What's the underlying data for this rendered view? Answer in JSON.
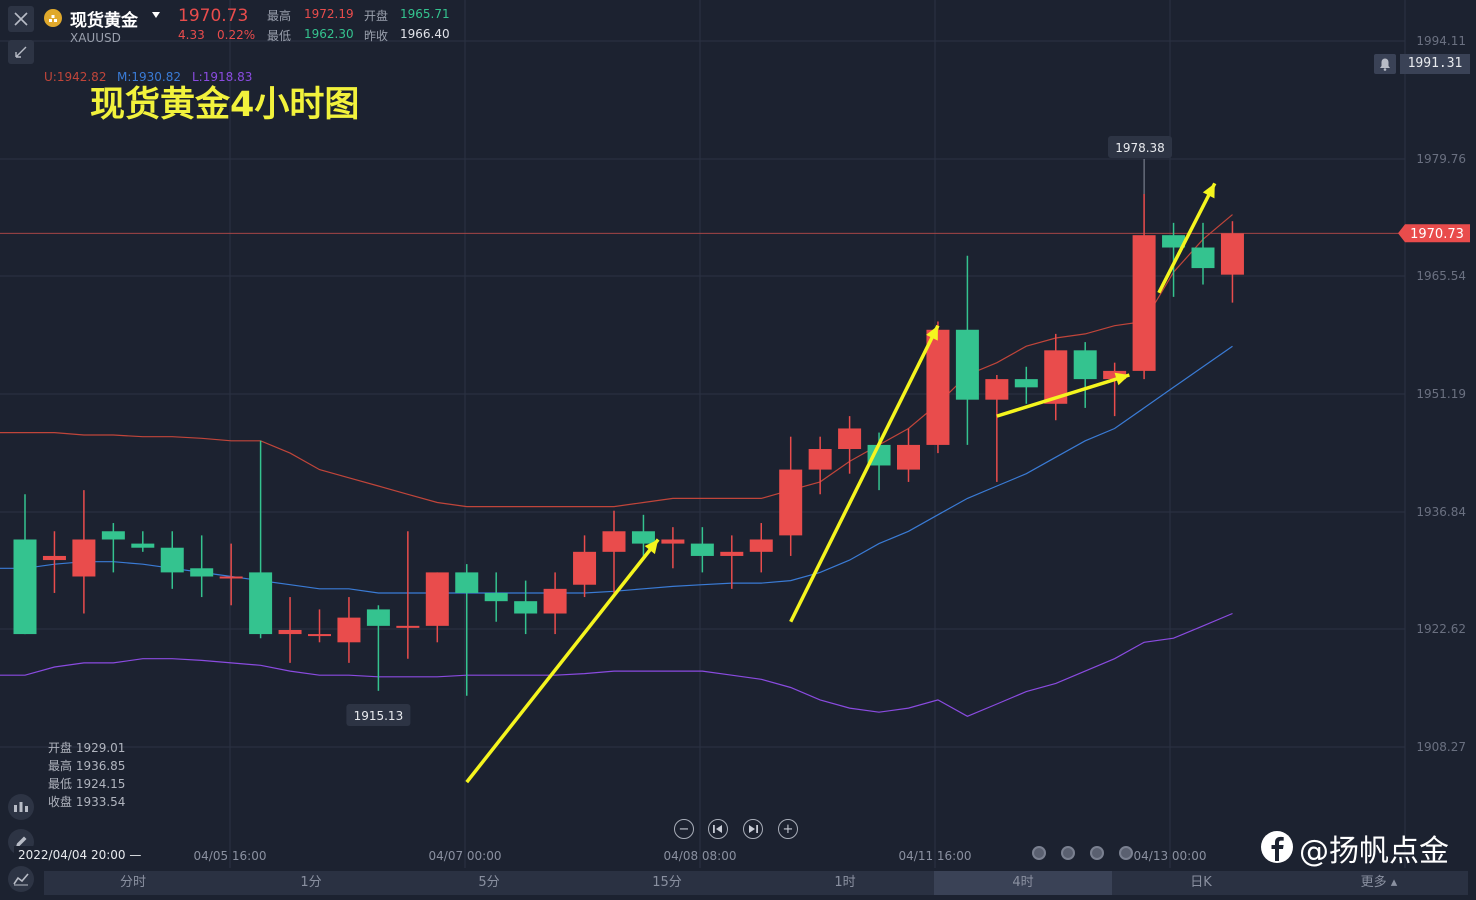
{
  "header": {
    "name": "现货黄金",
    "symbol": "XAUUSD",
    "price": "1970.73",
    "change": "4.33",
    "change_pct": "0.22%",
    "high_label": "最高",
    "high_value": "1972.19",
    "low_label": "最低",
    "low_value": "1962.30",
    "open_label": "开盘",
    "open_value": "1965.71",
    "prev_close_label": "昨收",
    "prev_close_value": "1966.40"
  },
  "boll": {
    "upper": "U:1942.82",
    "middle": "M:1930.82",
    "lower": "L:1918.83"
  },
  "overlay_title": "现货黄金4小时图",
  "alert_price": "1991.31",
  "ohlc_panel": {
    "open": "开盘 1929.01",
    "high": "最高 1936.85",
    "low": "最低 1924.15",
    "close": "收盘 1933.54"
  },
  "crosshair_time": "2022/04/04 20:00",
  "watermark": "@扬帆点金",
  "timeframes": [
    "分时",
    "1分",
    "5分",
    "15分",
    "1时",
    "4时",
    "日K",
    "更多"
  ],
  "active_timeframe": "4时",
  "colors": {
    "up": "#e94c4c",
    "down": "#34c38f",
    "upper_band": "#c0453a",
    "middle_band": "#3a7bd5",
    "lower_band": "#8a4be0",
    "arrow": "#f5f51e",
    "background": "#1c2230"
  },
  "chart_data": {
    "type": "candlestick",
    "y_ticks": [
      "1994.11",
      "1979.76",
      "1965.54",
      "1951.19",
      "1936.84",
      "1922.62",
      "1908.27"
    ],
    "x_ticks": [
      "04/05 16:00",
      "04/07 00:00",
      "04/08 08:00",
      "04/11 16:00",
      "04/13 00:00"
    ],
    "current_price_label": "1970.73",
    "max_label": "1978.38",
    "min_label": "1915.13",
    "ylim": [
      1902,
      1997
    ],
    "candles": [
      {
        "o": 1933.5,
        "h": 1939.0,
        "l": 1922.0,
        "c": 1922.0
      },
      {
        "o": 1931.0,
        "h": 1934.5,
        "l": 1927.0,
        "c": 1931.5
      },
      {
        "o": 1929.0,
        "h": 1939.5,
        "l": 1924.5,
        "c": 1933.5
      },
      {
        "o": 1934.5,
        "h": 1935.5,
        "l": 1929.5,
        "c": 1933.5
      },
      {
        "o": 1933.0,
        "h": 1934.5,
        "l": 1932.0,
        "c": 1932.5
      },
      {
        "o": 1932.5,
        "h": 1934.5,
        "l": 1927.5,
        "c": 1929.5
      },
      {
        "o": 1930.0,
        "h": 1934.0,
        "l": 1926.5,
        "c": 1929.0
      },
      {
        "o": 1929.0,
        "h": 1933.0,
        "l": 1925.5,
        "c": 1929.0
      },
      {
        "o": 1929.5,
        "h": 1945.5,
        "l": 1921.5,
        "c": 1922.0
      },
      {
        "o": 1922.0,
        "h": 1926.5,
        "l": 1918.5,
        "c": 1922.5
      },
      {
        "o": 1922.0,
        "h": 1925.0,
        "l": 1921.0,
        "c": 1922.0
      },
      {
        "o": 1921.0,
        "h": 1926.5,
        "l": 1918.5,
        "c": 1924.0
      },
      {
        "o": 1925.0,
        "h": 1925.5,
        "l": 1915.1,
        "c": 1923.0
      },
      {
        "o": 1923.0,
        "h": 1934.5,
        "l": 1919.0,
        "c": 1923.0
      },
      {
        "o": 1923.0,
        "h": 1929.5,
        "l": 1921.0,
        "c": 1929.5
      },
      {
        "o": 1929.5,
        "h": 1930.5,
        "l": 1914.5,
        "c": 1927.0
      },
      {
        "o": 1927.0,
        "h": 1929.5,
        "l": 1923.5,
        "c": 1926.0
      },
      {
        "o": 1926.0,
        "h": 1928.5,
        "l": 1922.0,
        "c": 1924.5
      },
      {
        "o": 1924.5,
        "h": 1929.5,
        "l": 1922.0,
        "c": 1927.5
      },
      {
        "o": 1928.0,
        "h": 1934.0,
        "l": 1926.5,
        "c": 1932.0
      },
      {
        "o": 1932.0,
        "h": 1937.0,
        "l": 1927.0,
        "c": 1934.5
      },
      {
        "o": 1934.5,
        "h": 1936.5,
        "l": 1931.0,
        "c": 1933.0
      },
      {
        "o": 1933.0,
        "h": 1935.0,
        "l": 1930.0,
        "c": 1933.5
      },
      {
        "o": 1933.0,
        "h": 1935.0,
        "l": 1929.5,
        "c": 1931.5
      },
      {
        "o": 1931.5,
        "h": 1934.0,
        "l": 1927.5,
        "c": 1932.0
      },
      {
        "o": 1932.0,
        "h": 1935.5,
        "l": 1929.5,
        "c": 1933.5
      },
      {
        "o": 1934.0,
        "h": 1946.0,
        "l": 1931.5,
        "c": 1942.0
      },
      {
        "o": 1942.0,
        "h": 1946.0,
        "l": 1939.0,
        "c": 1944.5
      },
      {
        "o": 1944.5,
        "h": 1948.5,
        "l": 1941.5,
        "c": 1947.0
      },
      {
        "o": 1945.0,
        "h": 1946.5,
        "l": 1939.5,
        "c": 1942.5
      },
      {
        "o": 1942.0,
        "h": 1947.0,
        "l": 1940.5,
        "c": 1945.0
      },
      {
        "o": 1945.0,
        "h": 1960.0,
        "l": 1944.0,
        "c": 1959.0
      },
      {
        "o": 1959.0,
        "h": 1968.0,
        "l": 1945.0,
        "c": 1950.5
      },
      {
        "o": 1950.5,
        "h": 1953.5,
        "l": 1940.5,
        "c": 1953.0
      },
      {
        "o": 1953.0,
        "h": 1954.5,
        "l": 1950.0,
        "c": 1952.0
      },
      {
        "o": 1950.0,
        "h": 1958.5,
        "l": 1948.0,
        "c": 1956.5
      },
      {
        "o": 1956.5,
        "h": 1957.5,
        "l": 1949.5,
        "c": 1953.0
      },
      {
        "o": 1953.0,
        "h": 1955.0,
        "l": 1948.5,
        "c": 1954.0
      },
      {
        "o": 1954.0,
        "h": 1975.5,
        "l": 1953.0,
        "c": 1970.5
      },
      {
        "o": 1970.5,
        "h": 1972.0,
        "l": 1963.0,
        "c": 1969.0
      },
      {
        "o": 1969.0,
        "h": 1972.0,
        "l": 1964.5,
        "c": 1966.5
      },
      {
        "o": 1965.7,
        "h": 1972.2,
        "l": 1962.3,
        "c": 1970.7
      }
    ],
    "upper_band": [
      1946.5,
      1946.5,
      1946.2,
      1946.2,
      1946.0,
      1946.0,
      1945.8,
      1945.5,
      1945.5,
      1944.0,
      1942.0,
      1941.0,
      1940.0,
      1939.0,
      1938.0,
      1937.5,
      1937.5,
      1937.5,
      1937.5,
      1937.5,
      1937.5,
      1938.0,
      1938.5,
      1938.5,
      1938.5,
      1938.5,
      1939.5,
      1940.5,
      1943.0,
      1945.0,
      1947.0,
      1950.0,
      1953.5,
      1955.0,
      1957.0,
      1958.0,
      1958.5,
      1959.5,
      1960.0,
      1966.0,
      1970.0,
      1973.0
    ],
    "middle_band": [
      1930.0,
      1930.5,
      1930.8,
      1930.8,
      1930.5,
      1930.0,
      1929.5,
      1929.0,
      1928.5,
      1928.0,
      1927.5,
      1927.5,
      1927.0,
      1927.0,
      1927.0,
      1927.0,
      1927.0,
      1927.0,
      1927.0,
      1927.0,
      1927.2,
      1927.5,
      1927.8,
      1928.0,
      1928.2,
      1928.2,
      1928.5,
      1929.5,
      1931.0,
      1933.0,
      1934.5,
      1936.5,
      1938.5,
      1940.0,
      1941.5,
      1943.5,
      1945.5,
      1947.0,
      1949.5,
      1952.0,
      1954.5,
      1957.0
    ],
    "lower_band": [
      1917.0,
      1918.0,
      1918.5,
      1918.5,
      1919.0,
      1919.0,
      1918.8,
      1918.5,
      1918.2,
      1917.5,
      1917.0,
      1917.0,
      1916.8,
      1916.8,
      1916.8,
      1917.0,
      1917.0,
      1917.0,
      1917.0,
      1917.2,
      1917.5,
      1917.5,
      1917.5,
      1917.5,
      1917.0,
      1916.5,
      1915.5,
      1914.0,
      1913.0,
      1912.5,
      1913.0,
      1914.0,
      1912.0,
      1913.5,
      1915.0,
      1916.0,
      1917.5,
      1919.0,
      1921.0,
      1921.5,
      1923.0,
      1924.5
    ],
    "arrows": [
      {
        "from": [
          15,
          1904
        ],
        "to": [
          21.5,
          1933.5
        ]
      },
      {
        "from": [
          26,
          1923.5
        ],
        "to": [
          31,
          1959.5
        ]
      },
      {
        "from": [
          33,
          1948.5
        ],
        "to": [
          37.5,
          1953.5
        ]
      },
      {
        "from": [
          38.5,
          1963.5
        ],
        "to": [
          40.4,
          1976.8
        ]
      }
    ]
  }
}
